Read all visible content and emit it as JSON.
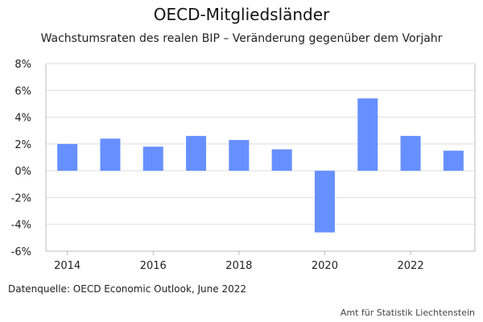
{
  "title": "OECD-Mitgliedsländer",
  "subtitle": "Wachstumsraten des realen BIP – Veränderung gegenüber dem Vorjahr",
  "source": "Datenquelle: OECD Economic Outlook, June 2022",
  "credit": "Amt für Statistik Liechtenstein",
  "colors": {
    "bar": "#6690ff",
    "grid": "#dddddd",
    "axis": "#bbbbbb"
  },
  "chart_data": {
    "type": "bar",
    "categories": [
      "2014",
      "2015",
      "2016",
      "2017",
      "2018",
      "2019",
      "2020",
      "2021",
      "2022",
      "2023"
    ],
    "values": [
      2.0,
      2.4,
      1.8,
      2.6,
      2.3,
      1.6,
      -4.6,
      5.4,
      2.6,
      1.5
    ],
    "ylim": [
      -6,
      8
    ],
    "yticks": [
      8,
      6,
      4,
      2,
      0,
      -2,
      -4,
      -6
    ],
    "ytick_labels": [
      "8%",
      "6%",
      "4%",
      "2%",
      "0%",
      "-2%",
      "-4%",
      "-6%"
    ],
    "xtick_labels": [
      "2014",
      "2016",
      "2018",
      "2020",
      "2022"
    ],
    "grid": true,
    "xlabel": "",
    "ylabel": ""
  }
}
